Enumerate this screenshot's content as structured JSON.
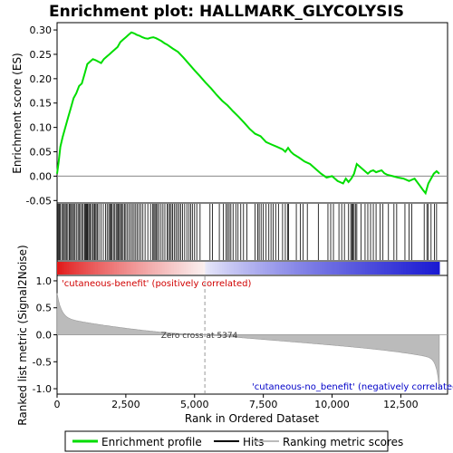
{
  "chart_data": {
    "type": "line",
    "title": "Enrichment plot: HALLMARK_GLYCOLYSIS",
    "xlabel": "Rank in Ordered Dataset",
    "ylabel_top": "Enrichment score (ES)",
    "ylabel_bottom": "Ranked list metric (Signal2Noise)",
    "x_ticks": [
      "0",
      "2,500",
      "5,000",
      "7,500",
      "10,000",
      "12,500"
    ],
    "x_tick_values": [
      0,
      2500,
      5000,
      7500,
      10000,
      12500
    ],
    "xlim": [
      0,
      14200
    ],
    "es_ylim": [
      -0.055,
      0.315
    ],
    "es_ticks": [
      "-0.05",
      "0.00",
      "0.05",
      "0.10",
      "0.15",
      "0.20",
      "0.25",
      "0.30"
    ],
    "es_tick_values": [
      -0.05,
      0,
      0.05,
      0.1,
      0.15,
      0.2,
      0.25,
      0.3
    ],
    "metric_ylim": [
      -1.1,
      1.1
    ],
    "metric_ticks": [
      "-1.0",
      "-0.5",
      "0.0",
      "0.5",
      "1.0"
    ],
    "metric_tick_values": [
      -1.0,
      -0.5,
      0,
      0.5,
      1.0
    ],
    "n_genes": 13900,
    "zero_cross_rank": 5374,
    "zero_cross_label": "Zero cross at 5374",
    "positive_label": "'cutaneous-benefit' (positively correlated)",
    "negative_label": "'cutaneous-no_benefit' (negatively correlated)",
    "es_color": "#00dd00",
    "pos_color": "#d00000",
    "neg_color": "#0000c8",
    "series": [
      {
        "name": "Enrichment profile",
        "x": [
          0,
          60,
          120,
          200,
          300,
          400,
          500,
          600,
          700,
          800,
          900,
          1000,
          1100,
          1200,
          1300,
          1400,
          1500,
          1600,
          1700,
          1800,
          1900,
          2000,
          2100,
          2200,
          2300,
          2400,
          2500,
          2600,
          2700,
          2800,
          2900,
          3000,
          3100,
          3200,
          3300,
          3400,
          3500,
          3600,
          3700,
          3800,
          3900,
          4000,
          4200,
          4400,
          4600,
          4800,
          5000,
          5200,
          5400,
          5600,
          5800,
          6000,
          6200,
          6400,
          6600,
          6800,
          7000,
          7200,
          7400,
          7600,
          7800,
          8000,
          8200,
          8300,
          8400,
          8500,
          8600,
          8800,
          9000,
          9200,
          9400,
          9600,
          9800,
          10000,
          10200,
          10400,
          10500,
          10600,
          10700,
          10800,
          10900,
          11000,
          11100,
          11200,
          11300,
          11400,
          11500,
          11600,
          11700,
          11800,
          11900,
          12000,
          12200,
          12400,
          12600,
          12800,
          13000,
          13200,
          13300,
          13400,
          13500,
          13600,
          13700,
          13800,
          13900
        ],
        "y": [
          0.005,
          0.03,
          0.06,
          0.08,
          0.1,
          0.12,
          0.14,
          0.16,
          0.17,
          0.185,
          0.19,
          0.21,
          0.23,
          0.235,
          0.24,
          0.238,
          0.235,
          0.232,
          0.24,
          0.245,
          0.25,
          0.255,
          0.26,
          0.265,
          0.275,
          0.28,
          0.285,
          0.29,
          0.295,
          0.293,
          0.29,
          0.288,
          0.285,
          0.283,
          0.282,
          0.284,
          0.285,
          0.283,
          0.28,
          0.277,
          0.273,
          0.27,
          0.262,
          0.255,
          0.243,
          0.23,
          0.217,
          0.205,
          0.192,
          0.18,
          0.167,
          0.155,
          0.145,
          0.133,
          0.122,
          0.11,
          0.097,
          0.087,
          0.082,
          0.07,
          0.065,
          0.06,
          0.055,
          0.05,
          0.058,
          0.05,
          0.045,
          0.038,
          0.03,
          0.025,
          0.015,
          0.005,
          -0.003,
          0.0,
          -0.01,
          -0.015,
          -0.005,
          -0.012,
          -0.005,
          0.005,
          0.025,
          0.02,
          0.015,
          0.01,
          0.005,
          0.01,
          0.012,
          0.008,
          0.01,
          0.012,
          0.006,
          0.003,
          0.0,
          -0.003,
          -0.005,
          -0.01,
          -0.005,
          -0.02,
          -0.028,
          -0.035,
          -0.015,
          -0.005,
          0.005,
          0.01,
          0.005
        ]
      }
    ],
    "hit_ranks": [
      15,
      45,
      80,
      120,
      170,
      220,
      260,
      300,
      340,
      390,
      440,
      470,
      520,
      560,
      600,
      650,
      700,
      760,
      800,
      850,
      900,
      950,
      1000,
      1030,
      1060,
      1090,
      1120,
      1160,
      1200,
      1250,
      1300,
      1350,
      1380,
      1420,
      1470,
      1520,
      1600,
      1680,
      1760,
      1820,
      1880,
      1920,
      1960,
      2000,
      2050,
      2100,
      2150,
      2200,
      2230,
      2270,
      2310,
      2350,
      2400,
      2450,
      2500,
      2560,
      2620,
      2680,
      2740,
      2800,
      2860,
      2920,
      2980,
      3050,
      3120,
      3200,
      3300,
      3400,
      3480,
      3520,
      3560,
      3600,
      3650,
      3700,
      3780,
      3850,
      3920,
      4000,
      4050,
      4100,
      4150,
      4200,
      4260,
      4320,
      4380,
      4440,
      4500,
      4560,
      4640,
      4720,
      4800,
      4860,
      4920,
      5000,
      5080,
      5200,
      5560,
      5650,
      5900,
      6050,
      6150,
      6200,
      6260,
      6320,
      6400,
      6500,
      6580,
      6680,
      6780,
      6900,
      7200,
      7300,
      7350,
      7420,
      7500,
      7600,
      7700,
      7780,
      7860,
      7950,
      8050,
      8200,
      8300,
      8380,
      8420,
      8700,
      8850,
      8950,
      9100,
      9500,
      9850,
      9950,
      10050,
      10250,
      10350,
      10450,
      10600,
      10680,
      10720,
      10760,
      10800,
      10850,
      10900,
      11050,
      11200,
      11300,
      11400,
      11500,
      11600,
      11750,
      11850,
      12050,
      12250,
      12350,
      12650,
      12800,
      12900,
      13350,
      13450,
      13500,
      13600,
      13720,
      13800
    ]
  },
  "legend": {
    "items": [
      {
        "label": "Enrichment profile",
        "color": "#00dd00"
      },
      {
        "label": "Hits",
        "color": "#000000"
      },
      {
        "label": "Ranking metric scores",
        "color": "#bbbbbb"
      }
    ]
  }
}
